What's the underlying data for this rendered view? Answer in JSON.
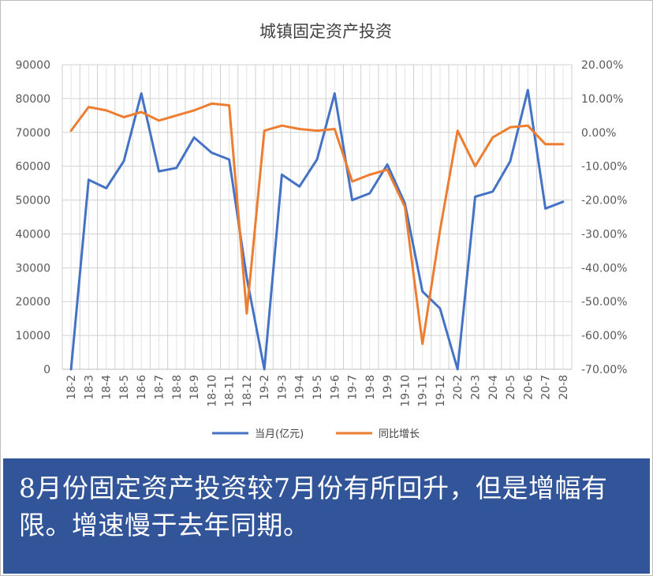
{
  "chart_data": {
    "type": "line",
    "title": "城镇固定资产投资",
    "categories": [
      "18-2",
      "18-3",
      "18-4",
      "18-5",
      "18-6",
      "18-7",
      "18-8",
      "18-9",
      "18-10",
      "18-11",
      "18-12",
      "19-2",
      "19-3",
      "19-4",
      "19-5",
      "19-6",
      "19-7",
      "19-8",
      "19-9",
      "19-10",
      "19-11",
      "19-12",
      "20-2",
      "20-3",
      "20-4",
      "20-5",
      "20-6",
      "20-7",
      "20-8"
    ],
    "y_left": {
      "range": [
        0,
        90000
      ],
      "ticks": [
        "0",
        "10000",
        "20000",
        "30000",
        "40000",
        "50000",
        "60000",
        "70000",
        "80000",
        "90000"
      ]
    },
    "y_right": {
      "range": [
        -70,
        20
      ],
      "ticks": [
        "-70.00%",
        "-60.00%",
        "-50.00%",
        "-40.00%",
        "-30.00%",
        "-20.00%",
        "-10.00%",
        "0.00%",
        "10.00%",
        "20.00%"
      ]
    },
    "series": [
      {
        "name": "当月(亿元)",
        "axis": "left",
        "color": "#4472c4",
        "values": [
          0,
          56000,
          53500,
          61500,
          81500,
          58500,
          59500,
          68500,
          64000,
          62000,
          27000,
          0,
          57500,
          54000,
          62000,
          81500,
          50000,
          52000,
          60500,
          49000,
          23000,
          18000,
          0,
          51000,
          52500,
          61500,
          82500,
          47500,
          49500
        ]
      },
      {
        "name": "同比增长",
        "axis": "right",
        "color": "#ed7d31",
        "values": [
          0.5,
          7.5,
          6.5,
          4.5,
          6.0,
          3.5,
          5.0,
          6.5,
          8.5,
          8.0,
          -53.5,
          0.5,
          2.0,
          1.0,
          0.5,
          1.0,
          -14.5,
          -12.5,
          -11.0,
          -22.0,
          -62.5,
          -29.0,
          0.5,
          -10.0,
          -1.5,
          1.5,
          2.0,
          -3.5,
          -3.5
        ]
      }
    ],
    "grid": true,
    "legend": "bottom-center"
  },
  "caption": {
    "text": "8月份固定资产投资较7月份有所回升，但是增幅有限。增速慢于去年同期。"
  }
}
